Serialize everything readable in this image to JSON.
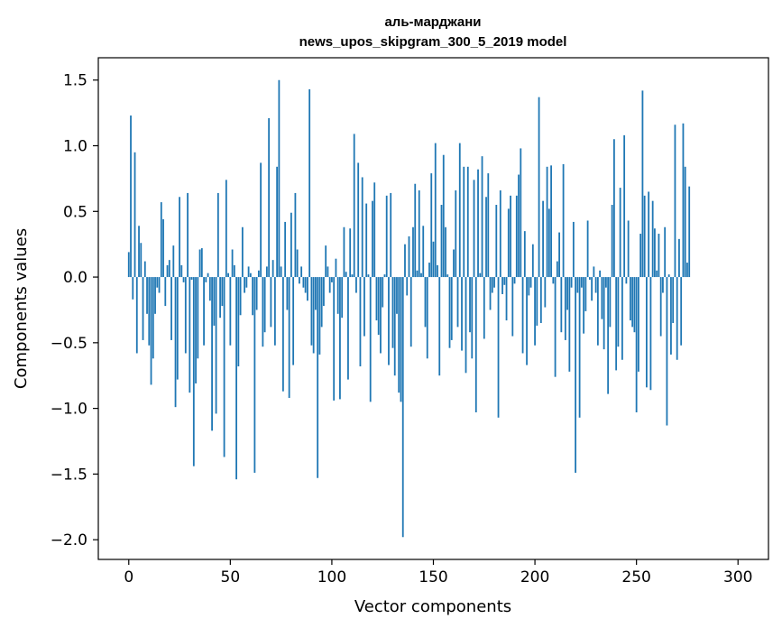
{
  "chart_data": {
    "type": "bar",
    "title": "аль-марджани",
    "subtitle": "news_upos_skipgram_300_5_2019 model",
    "xlabel": "Vector components",
    "ylabel": "Components values",
    "xlim": [
      -15,
      315
    ],
    "ylim": [
      -2.15,
      1.67
    ],
    "xticks": [
      0,
      50,
      100,
      150,
      200,
      250,
      300
    ],
    "xtick_labels": [
      "0",
      "50",
      "100",
      "150",
      "200",
      "250",
      "300"
    ],
    "yticks": [
      1.5,
      1.0,
      0.5,
      0.0,
      -0.5,
      -1.0,
      -1.5,
      -2.0
    ],
    "ytick_labels": [
      "1.5",
      "1.0",
      "0.5",
      "0.0",
      "−0.5",
      "−1.0",
      "−1.5",
      "−2.0"
    ],
    "bar_color": "#1f77b4",
    "grid": false,
    "series": [
      {
        "name": "аль-марджани",
        "x_start": 0,
        "values": [
          0.19,
          1.23,
          -0.17,
          0.95,
          -0.58,
          0.39,
          0.26,
          -0.48,
          0.12,
          -0.28,
          -0.52,
          -0.82,
          -0.62,
          -0.28,
          -0.08,
          -0.12,
          0.57,
          0.44,
          -0.22,
          0.09,
          0.13,
          -0.48,
          0.24,
          -0.99,
          -0.78,
          0.61,
          0.09,
          -0.04,
          -0.58,
          0.64,
          -0.88,
          -0.02,
          -1.44,
          -0.81,
          -0.62,
          0.21,
          0.22,
          -0.52,
          -0.04,
          0.03,
          -0.18,
          -1.17,
          -0.37,
          -1.04,
          0.64,
          -0.31,
          -0.22,
          -1.37,
          0.74,
          0.03,
          -0.52,
          0.21,
          0.09,
          -1.54,
          -0.68,
          -0.29,
          0.38,
          -0.12,
          -0.08,
          0.08,
          0.03,
          -0.29,
          -1.49,
          -0.25,
          0.05,
          0.87,
          -0.53,
          -0.42,
          0.08,
          1.21,
          -0.38,
          0.13,
          -0.52,
          0.84,
          1.5,
          0.08,
          -0.87,
          0.42,
          -0.25,
          -0.92,
          0.49,
          -0.67,
          0.64,
          0.21,
          -0.05,
          0.08,
          -0.08,
          -0.12,
          -0.18,
          1.43,
          -0.52,
          -0.58,
          -0.25,
          -1.53,
          -0.59,
          -0.38,
          -0.22,
          0.24,
          0.08,
          -0.12,
          -0.04,
          -0.94,
          0.14,
          -0.28,
          -0.93,
          -0.31,
          0.38,
          0.04,
          -0.78,
          0.37,
          0.02,
          1.09,
          -0.12,
          0.87,
          -0.68,
          0.76,
          -0.45,
          0.56,
          0.02,
          -0.95,
          0.58,
          0.72,
          -0.33,
          -0.44,
          -0.58,
          -0.23,
          0.02,
          0.62,
          -0.67,
          0.64,
          -0.54,
          -0.75,
          -0.28,
          -0.88,
          -0.95,
          -1.98,
          0.25,
          -0.14,
          0.31,
          -0.53,
          0.38,
          0.71,
          0.05,
          0.66,
          0.03,
          0.39,
          -0.38,
          -0.62,
          0.11,
          0.79,
          0.27,
          1.02,
          0.09,
          -0.75,
          0.55,
          0.93,
          0.38,
          0.02,
          -0.54,
          -0.48,
          0.21,
          0.66,
          -0.38,
          1.02,
          -0.56,
          0.84,
          -0.73,
          0.84,
          -0.42,
          -0.62,
          0.74,
          -1.03,
          0.82,
          0.03,
          0.92,
          -0.47,
          0.61,
          0.79,
          -0.25,
          -0.12,
          -0.08,
          0.55,
          -1.07,
          0.66,
          -0.13,
          -0.06,
          -0.33,
          0.52,
          0.62,
          -0.45,
          -0.05,
          0.62,
          0.78,
          0.98,
          -0.58,
          0.35,
          -0.67,
          -0.14,
          -0.08,
          0.25,
          -0.52,
          -0.37,
          1.37,
          -0.35,
          0.58,
          -0.23,
          0.84,
          0.52,
          0.85,
          -0.05,
          -0.76,
          0.12,
          0.34,
          -0.42,
          0.86,
          -0.48,
          -0.25,
          -0.72,
          -0.08,
          0.42,
          -1.49,
          -0.12,
          -1.07,
          -0.08,
          -0.43,
          -0.26,
          0.43,
          -0.02,
          -0.18,
          0.08,
          -0.12,
          -0.52,
          0.05,
          -0.32,
          -0.55,
          -0.08,
          -0.89,
          -0.38,
          0.55,
          1.05,
          -0.71,
          -0.53,
          0.68,
          -0.63,
          1.08,
          -0.05,
          0.43,
          -0.33,
          -0.38,
          -0.42,
          -1.03,
          -0.72,
          0.33,
          1.42,
          0.62,
          -0.84,
          0.65,
          -0.86,
          0.58,
          0.37,
          0.05,
          0.33,
          -0.45,
          -0.12,
          0.38,
          -1.13,
          0.02,
          -0.59,
          -0.35,
          1.16,
          -0.63,
          0.29,
          -0.52,
          1.17,
          0.84,
          0.11,
          0.69
        ]
      }
    ]
  }
}
